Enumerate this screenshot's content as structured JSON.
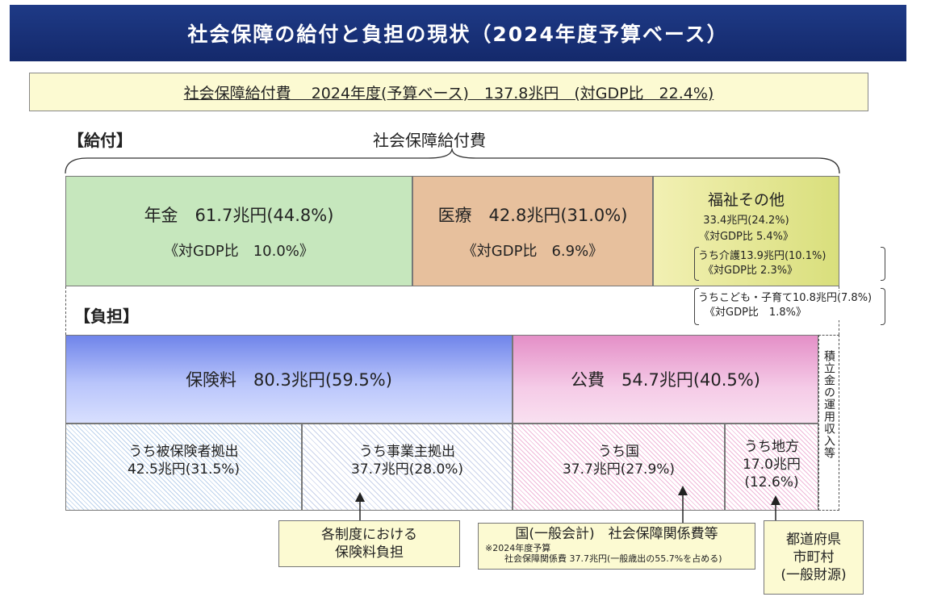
{
  "title": "社会保障の給付と負担の現状（2024年度予算ベース）",
  "summary": "社会保障給付費　 2024年度(予算ベース)　137.8兆円　(対GDP比　22.4%)",
  "benefits": {
    "section_label": "【給付】",
    "brace_label": "社会保障給付費",
    "pension": {
      "label": "年金　61.7兆円(44.8%)",
      "gdp": "《対GDP比　10.0%》",
      "amount_trillion_yen": 61.7,
      "share_pct": 44.8
    },
    "medical": {
      "label": "医療　42.8兆円(31.0%)",
      "gdp": "《対GDP比　6.9%》",
      "amount_trillion_yen": 42.8,
      "share_pct": 31.0
    },
    "welfare": {
      "title": "福祉その他",
      "amount": "33.4兆円(24.2%)",
      "gdp": "《対GDP比 5.4%》",
      "amount_trillion_yen": 33.4,
      "share_pct": 24.2
    },
    "care_note": {
      "line1": "うち介護13.9兆円(10.1%)",
      "line2": "《対GDP比 2.3%》"
    },
    "child_note": {
      "line1": "うちこども・子育て10.8兆円(7.8%)",
      "line2": "《対GDP比　1.8%》"
    }
  },
  "burden": {
    "section_label": "【負担】",
    "insurance": {
      "label": "保険料　80.3兆円(59.5%)",
      "amount_trillion_yen": 80.3,
      "share_pct": 59.5
    },
    "public": {
      "label": "公費　54.7兆円(40.5%)",
      "amount_trillion_yen": 54.7,
      "share_pct": 40.5
    },
    "fund_income": "積立金の運用収入等",
    "insured": {
      "line1": "うち被保険者拠出",
      "line2": "42.5兆円(31.5%)"
    },
    "employer": {
      "line1": "うち事業主拠出",
      "line2": "37.7兆円(28.0%)"
    },
    "national": {
      "line1": "うち国",
      "line2": "37.7兆円(27.9%)"
    },
    "local": {
      "line1": "うち地方",
      "line2": "17.0兆円",
      "line3": "(12.6%)"
    }
  },
  "callouts": {
    "premium": {
      "line1": "各制度における",
      "line2": "保険料負担"
    },
    "national": {
      "line1": "国(一般会計)　社会保障関係費等",
      "note1": "※2024年度予算",
      "note2": "社会保障関係費 37.7兆円(一般歳出の55.7%を占める)"
    },
    "local": {
      "line1": "都道府県",
      "line2": "市町村",
      "line3": "(一般財源)"
    }
  }
}
